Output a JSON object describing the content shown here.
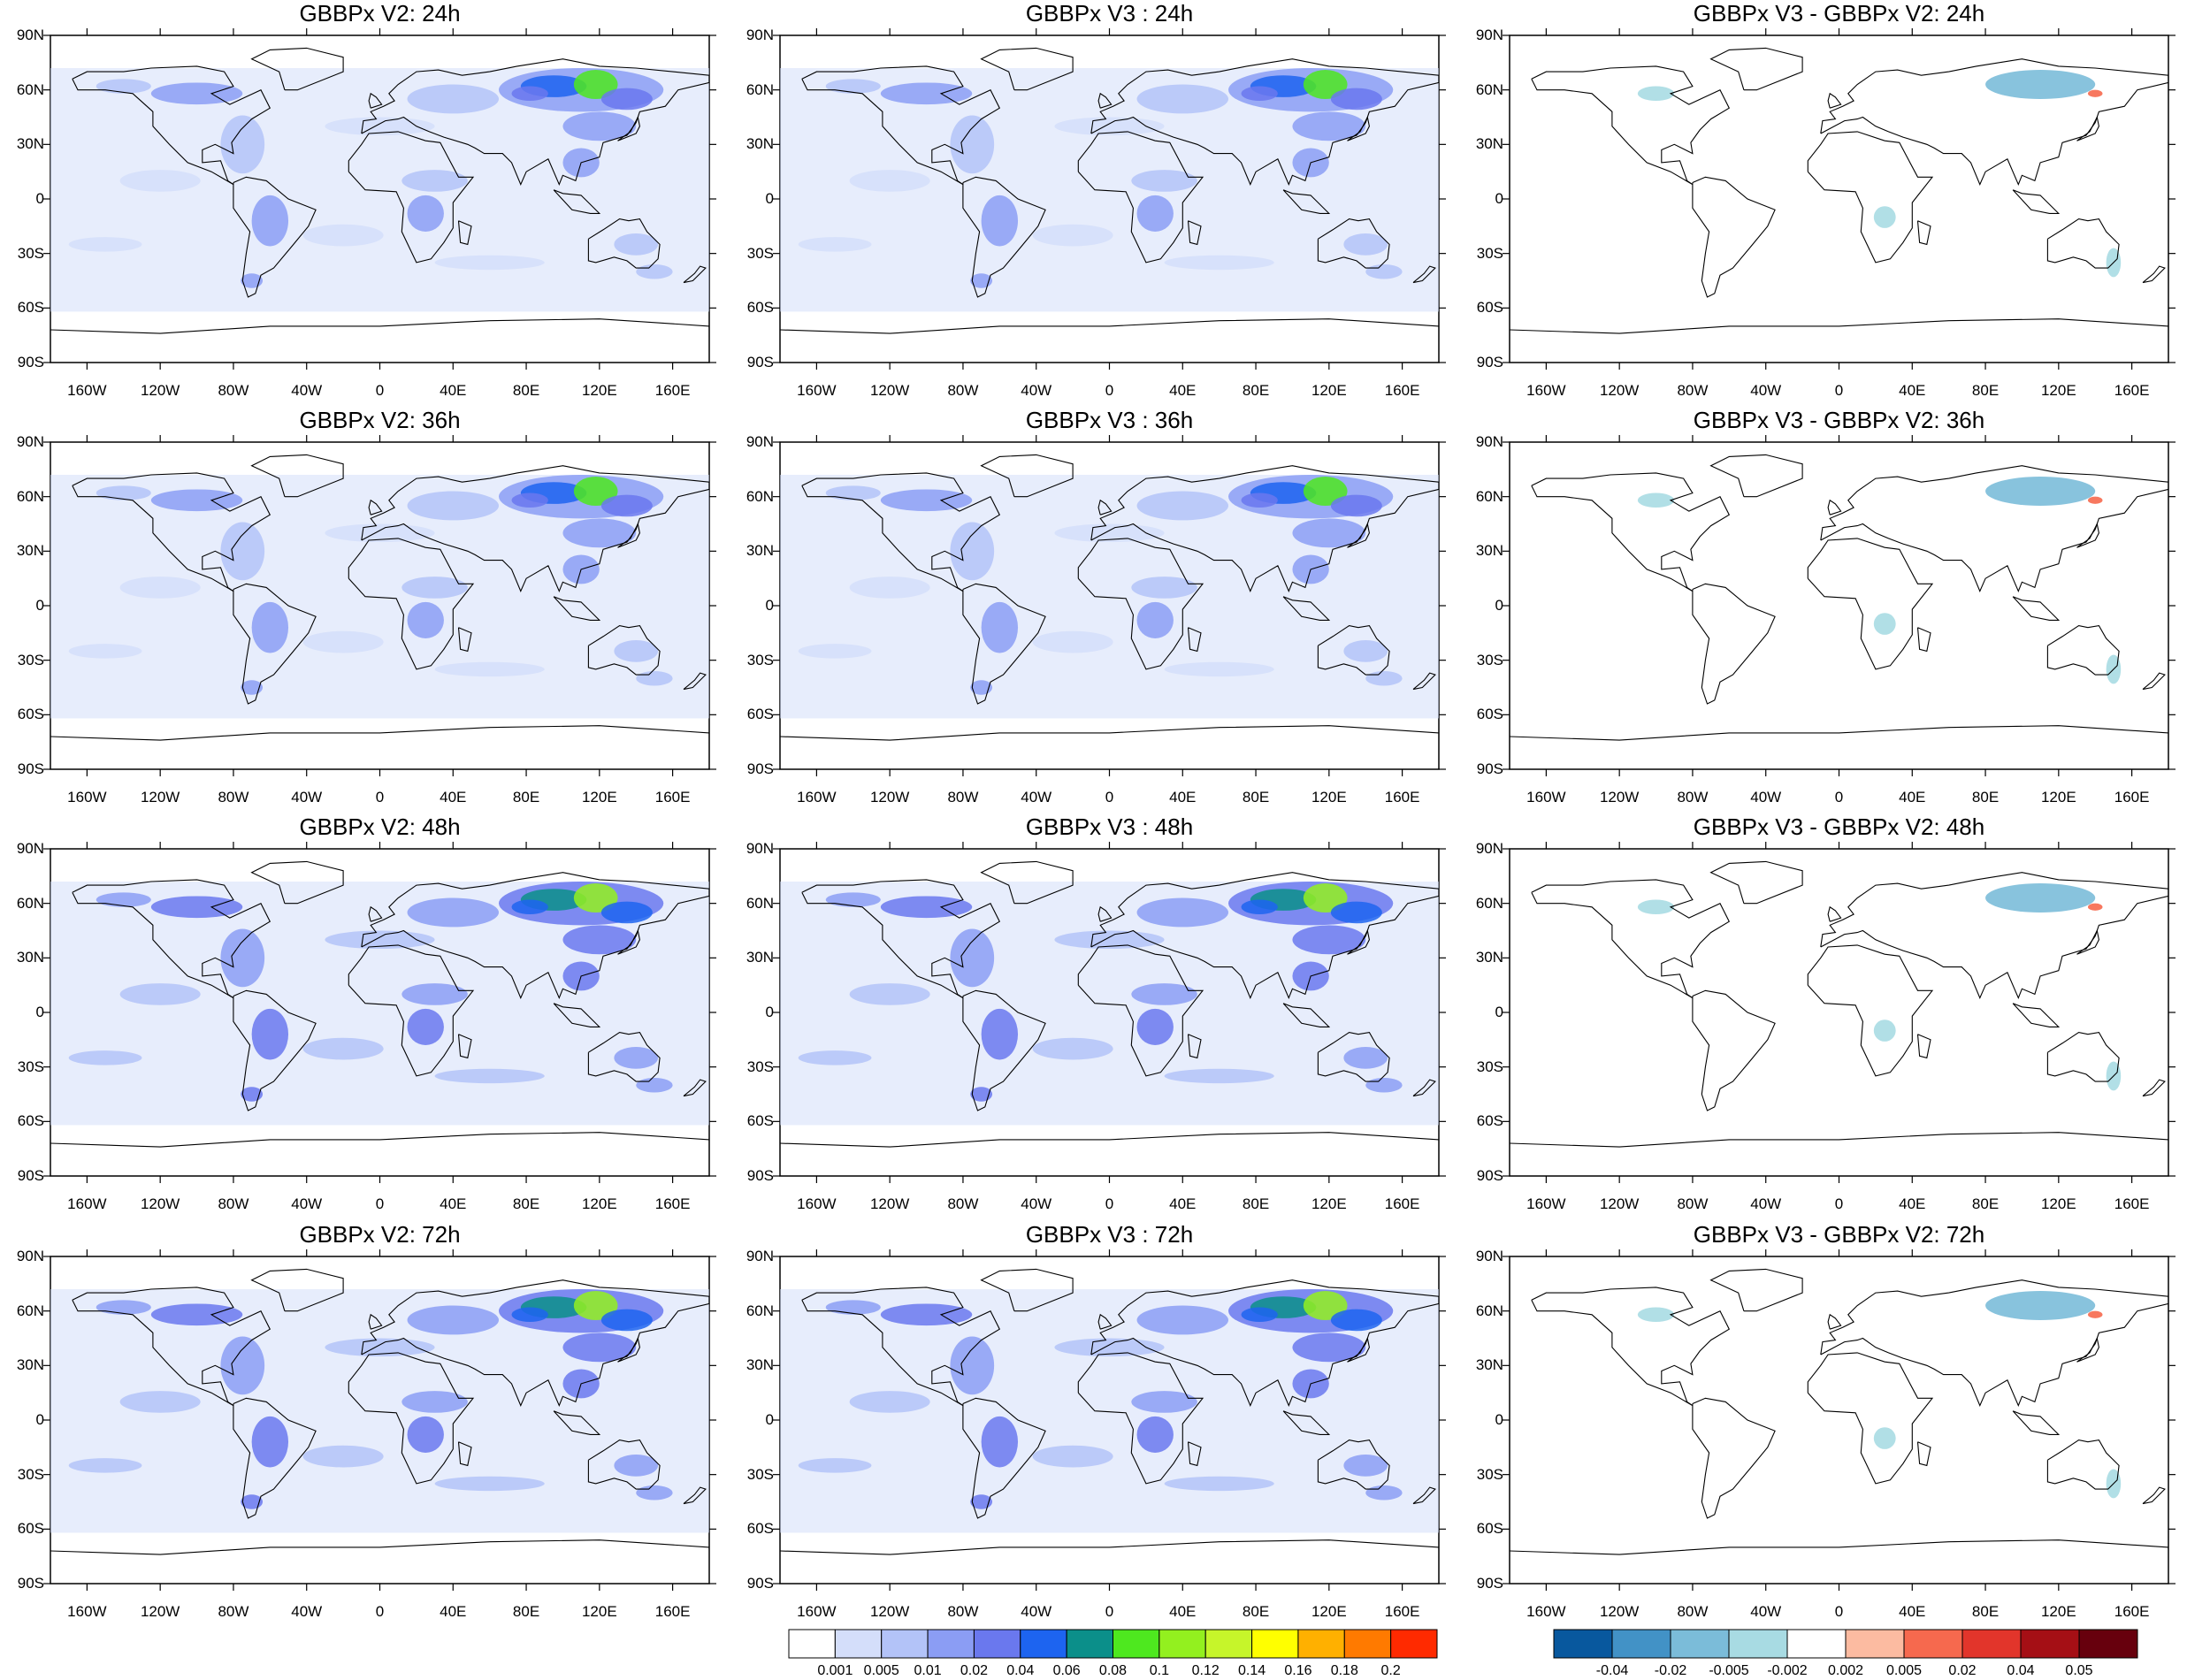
{
  "panels": [
    {
      "title": "GBBPx V2: 24h",
      "kind": "conc"
    },
    {
      "title": "GBBPx V3 : 24h",
      "kind": "conc"
    },
    {
      "title": "GBBPx V3 - GBBPx V2: 24h",
      "kind": "diff"
    },
    {
      "title": "GBBPx V2: 36h",
      "kind": "conc"
    },
    {
      "title": "GBBPx V3 : 36h",
      "kind": "conc"
    },
    {
      "title": "GBBPx V3 - GBBPx V2: 36h",
      "kind": "diff"
    },
    {
      "title": "GBBPx V2: 48h",
      "kind": "conc"
    },
    {
      "title": "GBBPx V3 : 48h",
      "kind": "conc"
    },
    {
      "title": "GBBPx V3 - GBBPx V2: 48h",
      "kind": "diff"
    },
    {
      "title": "GBBPx V2: 72h",
      "kind": "conc"
    },
    {
      "title": "GBBPx V3 : 72h",
      "kind": "conc"
    },
    {
      "title": "GBBPx V3 - GBBPx V2: 72h",
      "kind": "diff"
    }
  ],
  "lat_labels": [
    "90N",
    "60N",
    "30N",
    "0",
    "30S",
    "60S",
    "90S"
  ],
  "lon_labels": [
    "160W",
    "120W",
    "80W",
    "40W",
    "0",
    "40E",
    "80E",
    "120E",
    "160E"
  ],
  "lon_values": [
    -160,
    -120,
    -80,
    -40,
    0,
    40,
    80,
    120,
    160
  ],
  "lat_values": [
    90,
    60,
    30,
    0,
    -30,
    -60,
    -90
  ],
  "colorbar_conc": {
    "labels": [
      "0.001",
      "0.005",
      "0.01",
      "0.02",
      "0.04",
      "0.06",
      "0.08",
      "0.1",
      "0.12",
      "0.14",
      "0.16",
      "0.18",
      "0.2"
    ],
    "colors": [
      "#ffffff",
      "#d4defa",
      "#b3c3f8",
      "#8b9df4",
      "#6a78ee",
      "#1d64f0",
      "#0b8f8a",
      "#4ee81f",
      "#93f01f",
      "#c6f52a",
      "#ffff00",
      "#ffb000",
      "#ff7a00",
      "#ff2a00"
    ]
  },
  "colorbar_diff": {
    "labels": [
      "-0.04",
      "-0.02",
      "-0.005",
      "-0.002",
      "0.002",
      "0.005",
      "0.02",
      "0.04",
      "0.05"
    ],
    "colors": [
      "#08589e",
      "#4292c6",
      "#7bbcd9",
      "#a8dbe3",
      "#ffffff",
      "#fcbba1",
      "#f6694e",
      "#e2352b",
      "#a50f15",
      "#67000d"
    ]
  }
}
